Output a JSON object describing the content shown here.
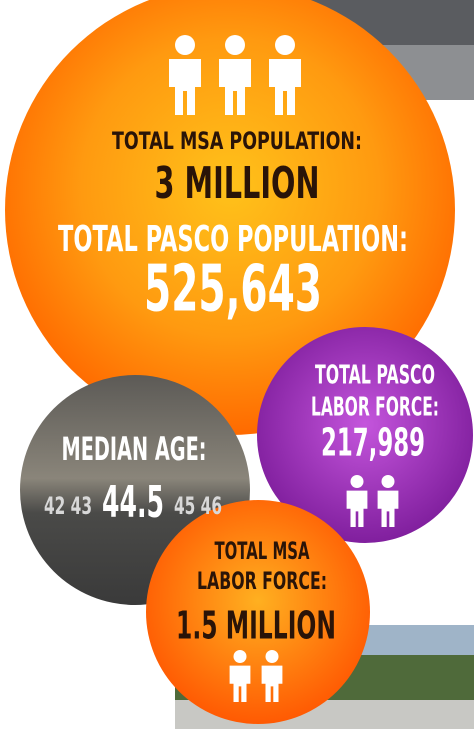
{
  "population": {
    "msa_label": "TOTAL MSA POPULATION:",
    "msa_value": "3 MILLION",
    "pasco_label": "TOTAL PASCO POPULATION:",
    "pasco_value": "525,643"
  },
  "pasco_labor": {
    "label_lines": [
      "TOTAL PASCO",
      "LABOR FORCE:"
    ],
    "value": "217,989"
  },
  "median_age": {
    "label": "MEDIAN AGE:",
    "scale_before": "42 43",
    "value": "44.5",
    "scale_after": "45 46"
  },
  "msa_labor": {
    "label_lines": [
      "TOTAL MSA",
      "LABOR FORCE:"
    ],
    "value": "1.5 MILLION"
  }
}
